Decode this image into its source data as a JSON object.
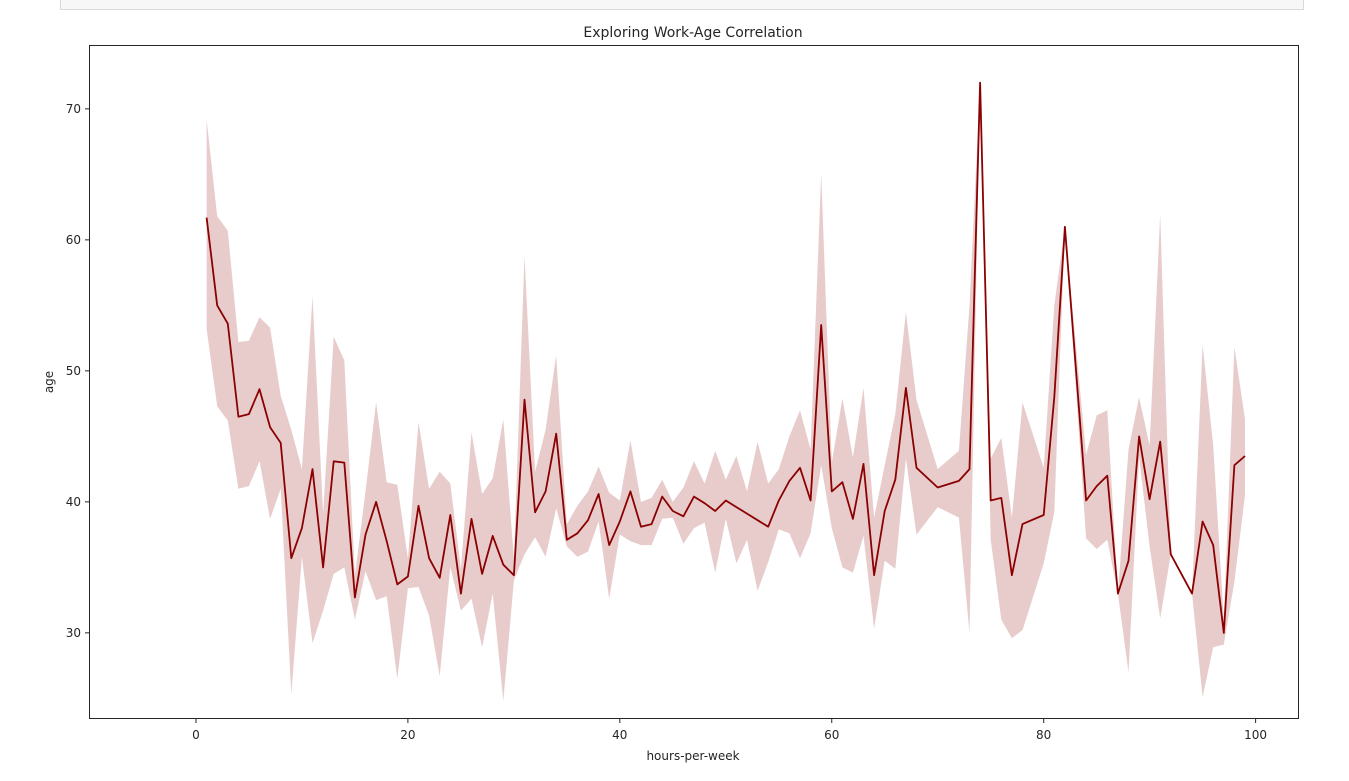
{
  "chart_data": {
    "type": "line",
    "title": "Exploring Work-Age Correlation",
    "xlabel": "hours-per-week",
    "ylabel": "age",
    "xlim": [
      -10,
      104
    ],
    "ylim": [
      23.5,
      74.8
    ],
    "xticks": [
      0,
      20,
      40,
      60,
      80,
      100
    ],
    "yticks": [
      30,
      40,
      50,
      60,
      70
    ],
    "grid": false,
    "colors": {
      "line": "#8b0000",
      "band": "#8b0000"
    },
    "series": [
      {
        "x": [
          1,
          2,
          3,
          4,
          5,
          6,
          7,
          8,
          9,
          10,
          11,
          12,
          13,
          14,
          15,
          16,
          17,
          18,
          19,
          20,
          21,
          22,
          23,
          24,
          25,
          26,
          27,
          28,
          29,
          30,
          31,
          32,
          33,
          34,
          35,
          36,
          37,
          38,
          39,
          40,
          41,
          42,
          43,
          44,
          45,
          46,
          47,
          48,
          49,
          50,
          51,
          52,
          53,
          54,
          55,
          56,
          57,
          58,
          59,
          60,
          61,
          62,
          63,
          64,
          65,
          66,
          67,
          68,
          70,
          72,
          73,
          74,
          75,
          76,
          77,
          78,
          80,
          81,
          82,
          84,
          85,
          86,
          87,
          88,
          89,
          90,
          91,
          92,
          94,
          95,
          96,
          97,
          98,
          99
        ],
        "y": [
          61.7,
          55.0,
          53.6,
          46.5,
          46.7,
          48.6,
          45.7,
          44.5,
          35.7,
          38.0,
          42.5,
          35.0,
          43.1,
          43.0,
          32.7,
          37.5,
          40.0,
          37.0,
          33.7,
          34.3,
          39.7,
          35.7,
          34.2,
          39.0,
          33.0,
          38.7,
          34.5,
          37.4,
          35.2,
          34.4,
          47.8,
          39.2,
          40.8,
          45.2,
          37.1,
          37.6,
          38.6,
          40.6,
          36.7,
          38.5,
          40.8,
          38.1,
          38.3,
          40.4,
          39.3,
          38.9,
          40.4,
          39.9,
          39.3,
          40.1,
          39.6,
          39.1,
          38.6,
          38.1,
          40.1,
          41.6,
          42.6,
          40.1,
          53.5,
          40.8,
          41.5,
          38.7,
          42.9,
          34.4,
          39.3,
          41.7,
          48.7,
          42.6,
          41.1,
          41.6,
          42.5,
          72.0,
          40.1,
          40.3,
          34.4,
          38.3,
          39.0,
          48.0,
          61.0,
          40.1,
          41.2,
          42.0,
          33.0,
          35.5,
          45.0,
          40.2,
          44.6,
          36.0,
          33.0,
          38.5,
          36.7,
          30.0,
          42.8,
          43.5
        ],
        "ci_lower": [
          53.2,
          47.3,
          46.2,
          41.0,
          41.2,
          43.1,
          38.7,
          41.0,
          25.3,
          35.8,
          29.2,
          31.7,
          34.5,
          35.0,
          31.0,
          34.7,
          32.5,
          32.8,
          26.5,
          33.4,
          33.5,
          31.3,
          26.7,
          35.0,
          31.7,
          32.6,
          28.9,
          33.0,
          24.8,
          34.0,
          36.0,
          37.3,
          35.8,
          39.5,
          36.6,
          35.8,
          36.2,
          38.5,
          32.6,
          37.5,
          37.0,
          36.7,
          36.7,
          38.7,
          38.8,
          36.8,
          38.0,
          38.4,
          34.6,
          38.7,
          35.3,
          37.1,
          33.2,
          35.4,
          37.9,
          37.6,
          35.7,
          37.6,
          42.8,
          38.0,
          35.0,
          34.6,
          37.4,
          30.3,
          35.5,
          34.9,
          43.3,
          37.5,
          39.6,
          38.8,
          30.0,
          72.0,
          37.1,
          31.0,
          29.6,
          30.2,
          35.3,
          39.2,
          61.0,
          37.2,
          36.4,
          37.1,
          33.0,
          27.0,
          43.4,
          36.6,
          31.1,
          36.0,
          33.0,
          25.1,
          28.9,
          29.1,
          33.9,
          40.5
        ],
        "ci_upper": [
          69.2,
          61.8,
          60.7,
          52.2,
          52.3,
          54.1,
          53.3,
          48.1,
          45.5,
          42.5,
          55.7,
          39.1,
          52.6,
          50.8,
          34.4,
          40.8,
          47.6,
          41.5,
          41.3,
          35.7,
          46.1,
          41.0,
          42.3,
          41.4,
          34.9,
          45.3,
          40.6,
          41.8,
          46.3,
          35.7,
          58.8,
          42.3,
          45.5,
          51.2,
          38.3,
          39.7,
          40.8,
          42.7,
          40.7,
          40.1,
          44.7,
          40.0,
          40.3,
          41.7,
          40.0,
          41.1,
          43.1,
          41.4,
          43.9,
          41.7,
          43.5,
          40.8,
          44.6,
          41.4,
          42.5,
          45.0,
          47.0,
          44.0,
          65.1,
          43.0,
          47.9,
          43.4,
          48.7,
          38.8,
          42.8,
          46.7,
          54.5,
          47.8,
          42.5,
          43.9,
          55.0,
          72.0,
          43.3,
          44.9,
          38.8,
          47.6,
          42.6,
          55.0,
          61.0,
          43.6,
          46.6,
          47.0,
          33.0,
          44.0,
          48.0,
          44.3,
          62.0,
          36.0,
          33.0,
          52.0,
          44.3,
          31.0,
          51.8,
          46.3
        ]
      }
    ]
  }
}
